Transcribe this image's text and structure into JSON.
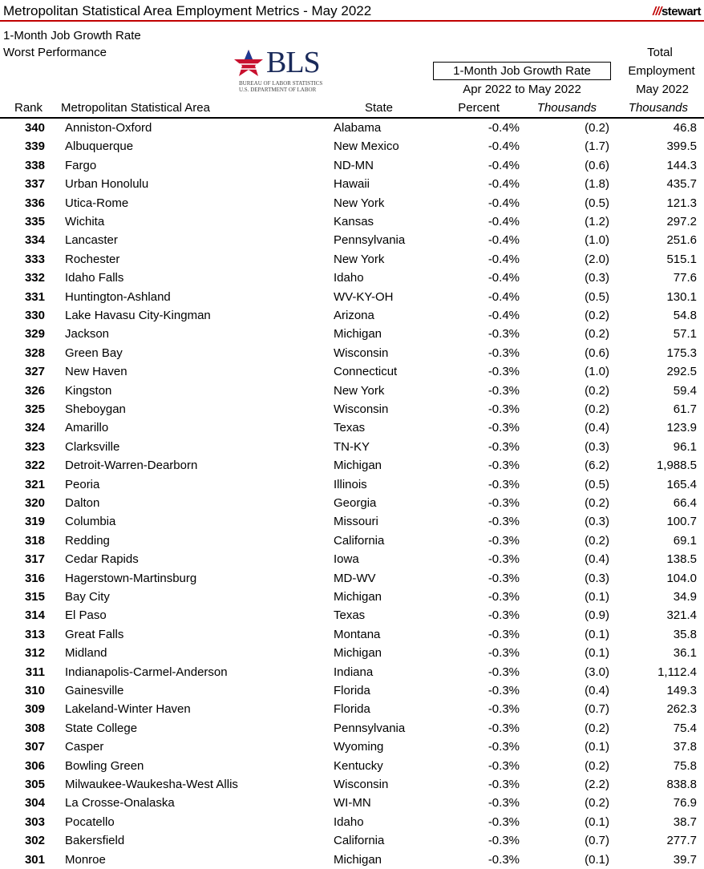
{
  "header": {
    "title": "Metropolitan Statistical Area Employment Metrics - May 2022",
    "brand": "stewart",
    "subtitle1": "1-Month Job Growth Rate",
    "subtitle2": "Worst Performance",
    "bls_logo": "BLS",
    "bls_line1": "BUREAU OF LABOR STATISTICS",
    "bls_line2": "U.S. DEPARTMENT OF LABOR"
  },
  "columns": {
    "group": "1-Month Job Growth Rate",
    "period": "Apr 2022 to May 2022",
    "total1": "Total",
    "total2": "Employment",
    "total3": "May 2022",
    "rank": "Rank",
    "area": "Metropolitan Statistical Area",
    "state": "State",
    "percent": "Percent",
    "thousands": "Thousands",
    "total_thousands": "Thousands"
  },
  "rows": [
    [
      "340",
      "Anniston-Oxford",
      "Alabama",
      "-0.4%",
      "(0.2)",
      "46.8"
    ],
    [
      "339",
      "Albuquerque",
      "New Mexico",
      "-0.4%",
      "(1.7)",
      "399.5"
    ],
    [
      "338",
      "Fargo",
      "ND-MN",
      "-0.4%",
      "(0.6)",
      "144.3"
    ],
    [
      "337",
      "Urban Honolulu",
      "Hawaii",
      "-0.4%",
      "(1.8)",
      "435.7"
    ],
    [
      "336",
      "Utica-Rome",
      "New York",
      "-0.4%",
      "(0.5)",
      "121.3"
    ],
    [
      "335",
      "Wichita",
      "Kansas",
      "-0.4%",
      "(1.2)",
      "297.2"
    ],
    [
      "334",
      "Lancaster",
      "Pennsylvania",
      "-0.4%",
      "(1.0)",
      "251.6"
    ],
    [
      "333",
      "Rochester",
      "New York",
      "-0.4%",
      "(2.0)",
      "515.1"
    ],
    [
      "332",
      "Idaho Falls",
      "Idaho",
      "-0.4%",
      "(0.3)",
      "77.6"
    ],
    [
      "331",
      "Huntington-Ashland",
      "WV-KY-OH",
      "-0.4%",
      "(0.5)",
      "130.1"
    ],
    [
      "330",
      "Lake Havasu City-Kingman",
      "Arizona",
      "-0.4%",
      "(0.2)",
      "54.8"
    ],
    [
      "329",
      "Jackson",
      "Michigan",
      "-0.3%",
      "(0.2)",
      "57.1"
    ],
    [
      "328",
      "Green Bay",
      "Wisconsin",
      "-0.3%",
      "(0.6)",
      "175.3"
    ],
    [
      "327",
      "New Haven",
      "Connecticut",
      "-0.3%",
      "(1.0)",
      "292.5"
    ],
    [
      "326",
      "Kingston",
      "New York",
      "-0.3%",
      "(0.2)",
      "59.4"
    ],
    [
      "325",
      "Sheboygan",
      "Wisconsin",
      "-0.3%",
      "(0.2)",
      "61.7"
    ],
    [
      "324",
      "Amarillo",
      "Texas",
      "-0.3%",
      "(0.4)",
      "123.9"
    ],
    [
      "323",
      "Clarksville",
      "TN-KY",
      "-0.3%",
      "(0.3)",
      "96.1"
    ],
    [
      "322",
      "Detroit-Warren-Dearborn",
      "Michigan",
      "-0.3%",
      "(6.2)",
      "1,988.5"
    ],
    [
      "321",
      "Peoria",
      "Illinois",
      "-0.3%",
      "(0.5)",
      "165.4"
    ],
    [
      "320",
      "Dalton",
      "Georgia",
      "-0.3%",
      "(0.2)",
      "66.4"
    ],
    [
      "319",
      "Columbia",
      "Missouri",
      "-0.3%",
      "(0.3)",
      "100.7"
    ],
    [
      "318",
      "Redding",
      "California",
      "-0.3%",
      "(0.2)",
      "69.1"
    ],
    [
      "317",
      "Cedar Rapids",
      "Iowa",
      "-0.3%",
      "(0.4)",
      "138.5"
    ],
    [
      "316",
      "Hagerstown-Martinsburg",
      "MD-WV",
      "-0.3%",
      "(0.3)",
      "104.0"
    ],
    [
      "315",
      "Bay City",
      "Michigan",
      "-0.3%",
      "(0.1)",
      "34.9"
    ],
    [
      "314",
      "El Paso",
      "Texas",
      "-0.3%",
      "(0.9)",
      "321.4"
    ],
    [
      "313",
      "Great Falls",
      "Montana",
      "-0.3%",
      "(0.1)",
      "35.8"
    ],
    [
      "312",
      "Midland",
      "Michigan",
      "-0.3%",
      "(0.1)",
      "36.1"
    ],
    [
      "311",
      "Indianapolis-Carmel-Anderson",
      "Indiana",
      "-0.3%",
      "(3.0)",
      "1,112.4"
    ],
    [
      "310",
      "Gainesville",
      "Florida",
      "-0.3%",
      "(0.4)",
      "149.3"
    ],
    [
      "309",
      "Lakeland-Winter Haven",
      "Florida",
      "-0.3%",
      "(0.7)",
      "262.3"
    ],
    [
      "308",
      "State College",
      "Pennsylvania",
      "-0.3%",
      "(0.2)",
      "75.4"
    ],
    [
      "307",
      "Casper",
      "Wyoming",
      "-0.3%",
      "(0.1)",
      "37.8"
    ],
    [
      "306",
      "Bowling Green",
      "Kentucky",
      "-0.3%",
      "(0.2)",
      "75.8"
    ],
    [
      "305",
      "Milwaukee-Waukesha-West Allis",
      "Wisconsin",
      "-0.3%",
      "(2.2)",
      "838.8"
    ],
    [
      "304",
      "La Crosse-Onalaska",
      "WI-MN",
      "-0.3%",
      "(0.2)",
      "76.9"
    ],
    [
      "303",
      "Pocatello",
      "Idaho",
      "-0.3%",
      "(0.1)",
      "38.7"
    ],
    [
      "302",
      "Bakersfield",
      "California",
      "-0.3%",
      "(0.7)",
      "277.7"
    ],
    [
      "301",
      "Monroe",
      "Michigan",
      "-0.3%",
      "(0.1)",
      "39.7"
    ]
  ]
}
